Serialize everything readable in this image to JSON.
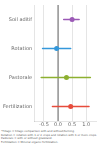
{
  "chart_data": {
    "type": "dot",
    "orientation": "horizontal",
    "categories": [
      "Soil aditif",
      "Rotation",
      "Pastorale",
      "Fertilization"
    ],
    "values": [
      0.5,
      -0.05,
      0.3,
      0.45
    ],
    "ci_low": [
      0.2,
      -0.55,
      -0.6,
      -0.2
    ],
    "ci_high": [
      0.75,
      0.45,
      1.15,
      1.1
    ],
    "colors": [
      "#9b59b6",
      "#3498db",
      "#8db030",
      "#e74c3c"
    ],
    "xlim": [
      -0.85,
      1.35
    ],
    "xticks": [
      -0.5,
      {
        "value": 0,
        "label": "0.0"
      },
      0.5,
      {
        "value": 1,
        "label": "1.0"
      }
    ],
    "grid": true,
    "reference_line": {
      "x": 0,
      "color": "#666666"
    },
    "annotation": "*Tillage = tillage comparison with and without/turning.\nRotation = rotation with 1 or 2 crops and rotation with 3 or more crops.\nPastorale = with or without grassland.\nFertilization = Mineral organic fertilization."
  }
}
